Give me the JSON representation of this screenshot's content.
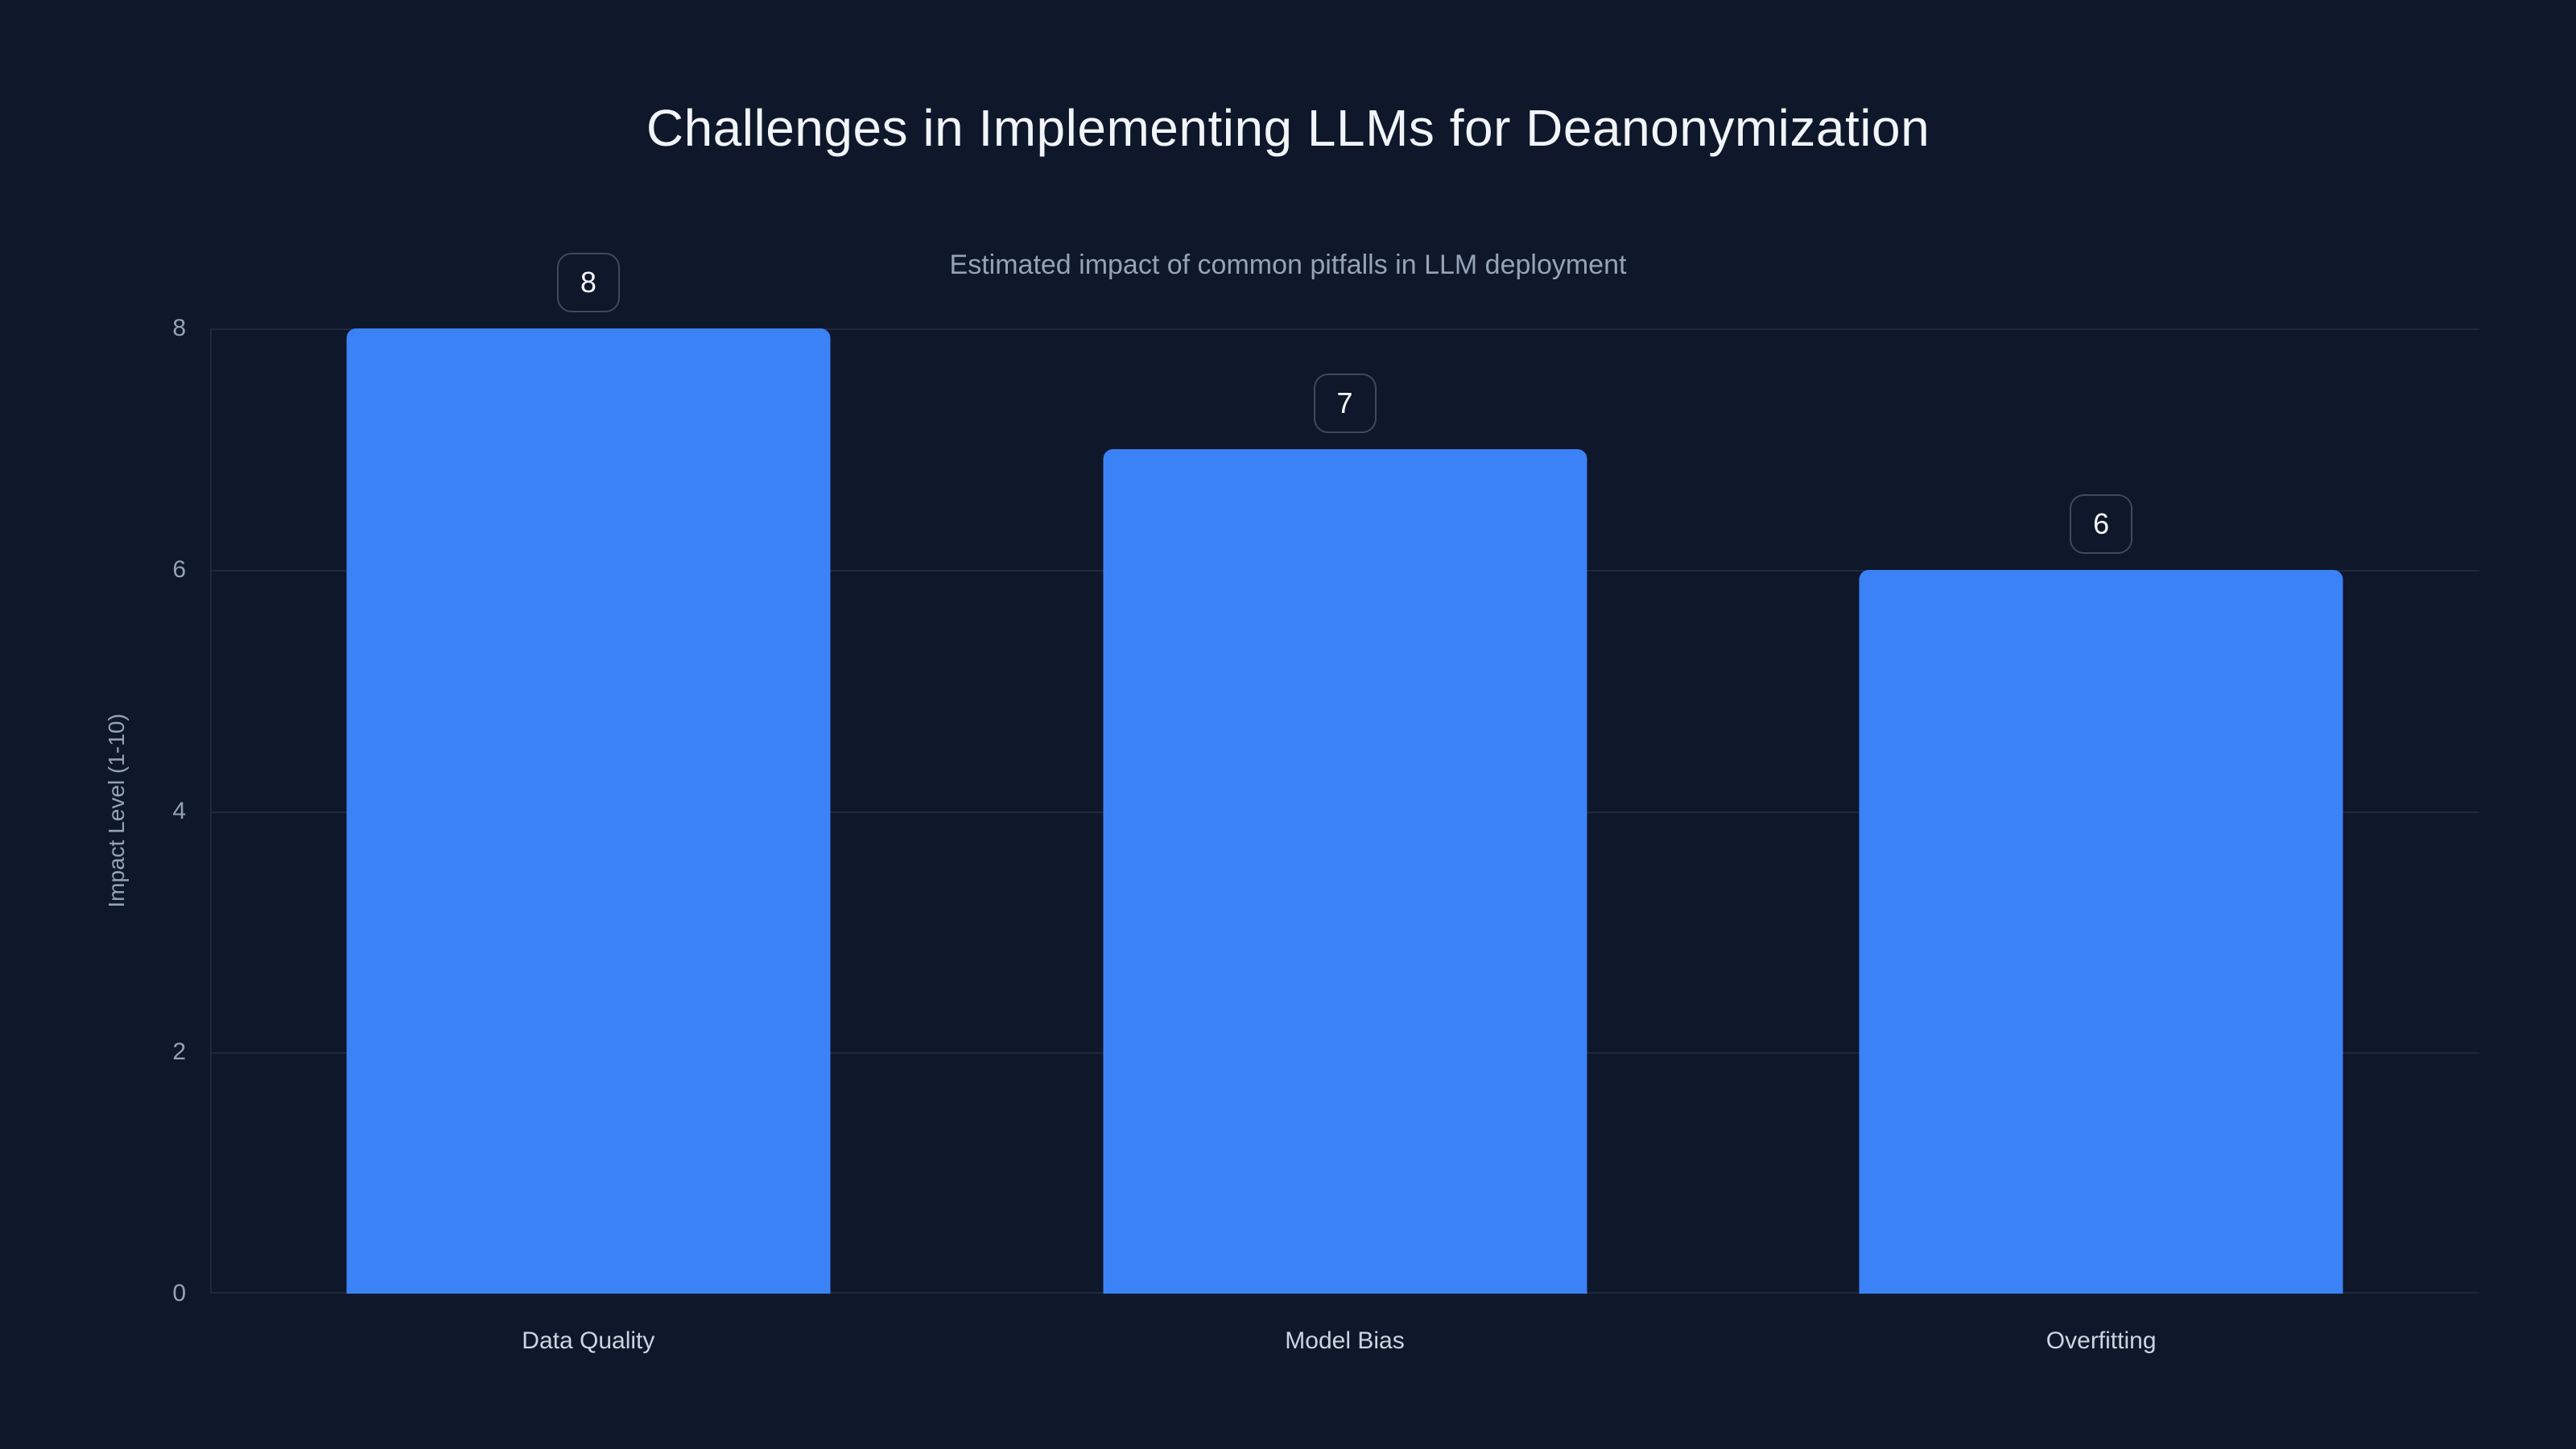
{
  "header": {
    "title": "Challenges in Implementing LLMs for Deanonymization",
    "subtitle": "Estimated impact of common pitfalls in LLM deployment"
  },
  "chart_data": {
    "type": "bar",
    "title": "Challenges in Implementing LLMs for Deanonymization",
    "subtitle": "Estimated impact of common pitfalls in LLM deployment",
    "categories": [
      "Data Quality",
      "Model Bias",
      "Overfitting"
    ],
    "values": [
      8,
      7,
      6
    ],
    "value_labels": [
      "8",
      "7",
      "6"
    ],
    "xlabel": "",
    "ylabel": "Impact Level (1-10)",
    "ylim": [
      0,
      8
    ],
    "yticks": [
      0,
      2,
      4,
      6,
      8
    ],
    "grid": "horizontal-only",
    "legend": "none",
    "bar_width_fraction": 0.64
  },
  "colors": {
    "background": "#0f172a",
    "bar": "#3b82f6",
    "gridline": "#1e293b",
    "axis_line": "#1e293b",
    "title": "#f1f5f9",
    "subtitle": "#94a3b8",
    "tick_label": "#94a3b8",
    "category_label": "#cbd5e1",
    "badge_border": "#3e4a5e",
    "badge_text": "#f8fafc"
  }
}
